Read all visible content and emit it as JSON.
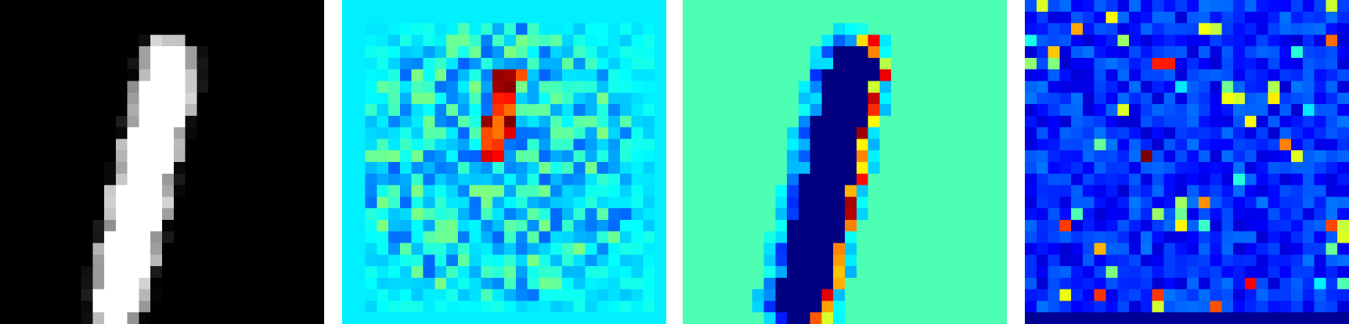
{
  "panels": [
    {
      "id": "input-digit",
      "colormap": "gray",
      "background": "#000000"
    },
    {
      "id": "saliency-map-a",
      "colormap": "jet",
      "background": "#00d8ff"
    },
    {
      "id": "saliency-map-b",
      "colormap": "jet",
      "background": "#33ffcc"
    },
    {
      "id": "saliency-map-c",
      "colormap": "jet",
      "background": "#0012e0"
    }
  ],
  "colors": {
    "divider": "#ffffff",
    "digit_stroke": "#ffffff",
    "hot": "#8b0000",
    "warm": "#ff5a00",
    "yellow": "#ffe100",
    "cyan": "#00d8ff",
    "navy": "#000080"
  }
}
